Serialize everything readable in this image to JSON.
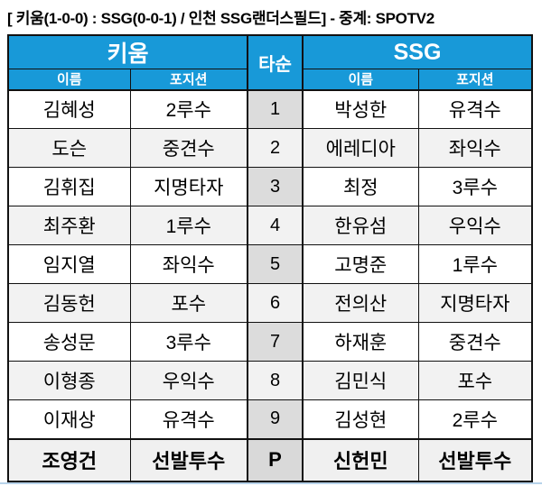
{
  "page": {
    "title": "[ 키움(1-0-0) : SSG(0-0-1) / 인천 SSG랜더스필드] - 중계: SPOTV2"
  },
  "colors": {
    "header_blue": "#1899D8",
    "header_text": "#FFFFFF",
    "row_alt_gray": "#F2F2F2",
    "order_column_gray": "#DCDCDC",
    "pitcher_row_gray": "#F0F0F0",
    "pitcher_order_cell_gray": "#D9D9D9",
    "border_black": "#111111",
    "bottom_divider_blue": "#B7D3EA"
  },
  "table": {
    "left_team": "키움",
    "right_team": "SSG",
    "order_header": "타순",
    "name_header_left": "이름",
    "position_header_left": "포지션",
    "name_header_right": "이름",
    "position_header_right": "포지션",
    "rows": [
      {
        "order": "1",
        "left": {
          "name": "김혜성",
          "position": "2루수"
        },
        "right": {
          "name": "박성한",
          "position": "유격수"
        }
      },
      {
        "order": "2",
        "left": {
          "name": "도슨",
          "position": "중견수"
        },
        "right": {
          "name": "에레디아",
          "position": "좌익수"
        }
      },
      {
        "order": "3",
        "left": {
          "name": "김휘집",
          "position": "지명타자"
        },
        "right": {
          "name": "최정",
          "position": "3루수"
        }
      },
      {
        "order": "4",
        "left": {
          "name": "최주환",
          "position": "1루수"
        },
        "right": {
          "name": "한유섬",
          "position": "우익수"
        }
      },
      {
        "order": "5",
        "left": {
          "name": "임지열",
          "position": "좌익수"
        },
        "right": {
          "name": "고명준",
          "position": "1루수"
        }
      },
      {
        "order": "6",
        "left": {
          "name": "김동헌",
          "position": "포수"
        },
        "right": {
          "name": "전의산",
          "position": "지명타자"
        }
      },
      {
        "order": "7",
        "left": {
          "name": "송성문",
          "position": "3루수"
        },
        "right": {
          "name": "하재훈",
          "position": "중견수"
        }
      },
      {
        "order": "8",
        "left": {
          "name": "이형종",
          "position": "우익수"
        },
        "right": {
          "name": "김민식",
          "position": "포수"
        }
      },
      {
        "order": "9",
        "left": {
          "name": "이재상",
          "position": "유격수"
        },
        "right": {
          "name": "김성현",
          "position": "2루수"
        }
      },
      {
        "order": "P",
        "left": {
          "name": "조영건",
          "position": "선발투수"
        },
        "right": {
          "name": "신헌민",
          "position": "선발투수"
        }
      }
    ]
  }
}
